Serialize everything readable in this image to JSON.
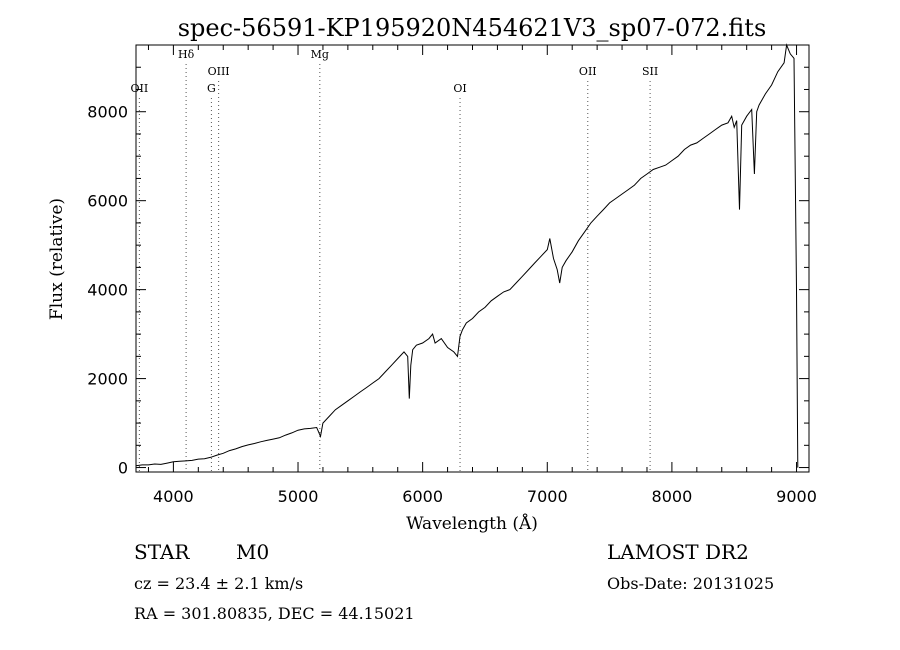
{
  "chart_data": {
    "type": "line",
    "title": "spec-56591-KP195920N454621V3_sp07-072.fits",
    "xlabel": "Wavelength (Å)",
    "ylabel": "Flux (relative)",
    "xlim": [
      3700,
      9100
    ],
    "ylim": [
      -100,
      9500
    ],
    "xticks": [
      4000,
      5000,
      6000,
      7000,
      8000,
      9000
    ],
    "yticks": [
      0,
      2000,
      4000,
      6000,
      8000
    ],
    "grid": false,
    "line_color": "#000000",
    "lines": [
      {
        "label": "OII",
        "x": 3727
      },
      {
        "label": "Hδ",
        "x": 4102
      },
      {
        "label": "OIII",
        "x": 4363
      },
      {
        "label": "G",
        "x": 4305
      },
      {
        "label": "Mg",
        "x": 5175
      },
      {
        "label": "OI",
        "x": 6300
      },
      {
        "label": "OII",
        "x": 7325
      },
      {
        "label": "SII",
        "x": 7825
      }
    ],
    "series": [
      {
        "x": [
          3700,
          3750,
          3800,
          3850,
          3900,
          3950,
          4000,
          4050,
          4100,
          4150,
          4200,
          4250,
          4300,
          4350,
          4400,
          4450,
          4500,
          4550,
          4600,
          4650,
          4700,
          4750,
          4800,
          4850,
          4900,
          4950,
          5000,
          5050,
          5100,
          5150,
          5180,
          5200,
          5250,
          5300,
          5350,
          5400,
          5450,
          5500,
          5550,
          5600,
          5650,
          5700,
          5750,
          5800,
          5850,
          5880,
          5893,
          5905,
          5920,
          5950,
          6000,
          6050,
          6080,
          6100,
          6150,
          6200,
          6250,
          6280,
          6300,
          6320,
          6350,
          6400,
          6450,
          6500,
          6550,
          6600,
          6650,
          6700,
          6750,
          6800,
          6850,
          6900,
          6950,
          7000,
          7020,
          7050,
          7080,
          7100,
          7120,
          7150,
          7200,
          7250,
          7300,
          7350,
          7400,
          7450,
          7500,
          7550,
          7600,
          7650,
          7700,
          7750,
          7800,
          7850,
          7900,
          7950,
          8000,
          8050,
          8100,
          8150,
          8200,
          8250,
          8300,
          8350,
          8400,
          8450,
          8480,
          8500,
          8520,
          8542,
          8560,
          8600,
          8640,
          8662,
          8680,
          8700,
          8750,
          8800,
          8850,
          8900,
          8920,
          8950,
          8980,
          9000,
          9010
        ],
        "y": [
          40,
          60,
          60,
          80,
          70,
          100,
          130,
          140,
          150,
          160,
          190,
          200,
          230,
          280,
          320,
          380,
          420,
          470,
          510,
          540,
          580,
          610,
          640,
          670,
          730,
          780,
          840,
          870,
          880,
          900,
          700,
          1000,
          1150,
          1300,
          1400,
          1500,
          1600,
          1700,
          1800,
          1900,
          2000,
          2150,
          2300,
          2450,
          2600,
          2500,
          1550,
          2300,
          2650,
          2750,
          2800,
          2900,
          3000,
          2800,
          2900,
          2700,
          2600,
          2500,
          2950,
          3100,
          3250,
          3350,
          3500,
          3600,
          3750,
          3850,
          3950,
          4000,
          4150,
          4300,
          4450,
          4600,
          4750,
          4900,
          5150,
          4700,
          4450,
          4150,
          4500,
          4650,
          4850,
          5100,
          5300,
          5500,
          5650,
          5800,
          5950,
          6050,
          6150,
          6250,
          6350,
          6500,
          6600,
          6700,
          6750,
          6800,
          6900,
          7000,
          7150,
          7250,
          7300,
          7400,
          7500,
          7600,
          7700,
          7750,
          7900,
          7650,
          7800,
          5800,
          7700,
          7900,
          8050,
          6600,
          8000,
          8150,
          8400,
          8600,
          8900,
          9100,
          9500,
          9300,
          9200,
          4000,
          0
        ]
      }
    ]
  },
  "info": {
    "object_class": "STAR",
    "subclass": "M0",
    "redshift": "cz = 23.4 ± 2.1 km/s",
    "coordinates": "RA = 301.80835, DEC =  44.15021",
    "survey": "LAMOST DR2",
    "obs_date": "Obs-Date: 20131025"
  }
}
